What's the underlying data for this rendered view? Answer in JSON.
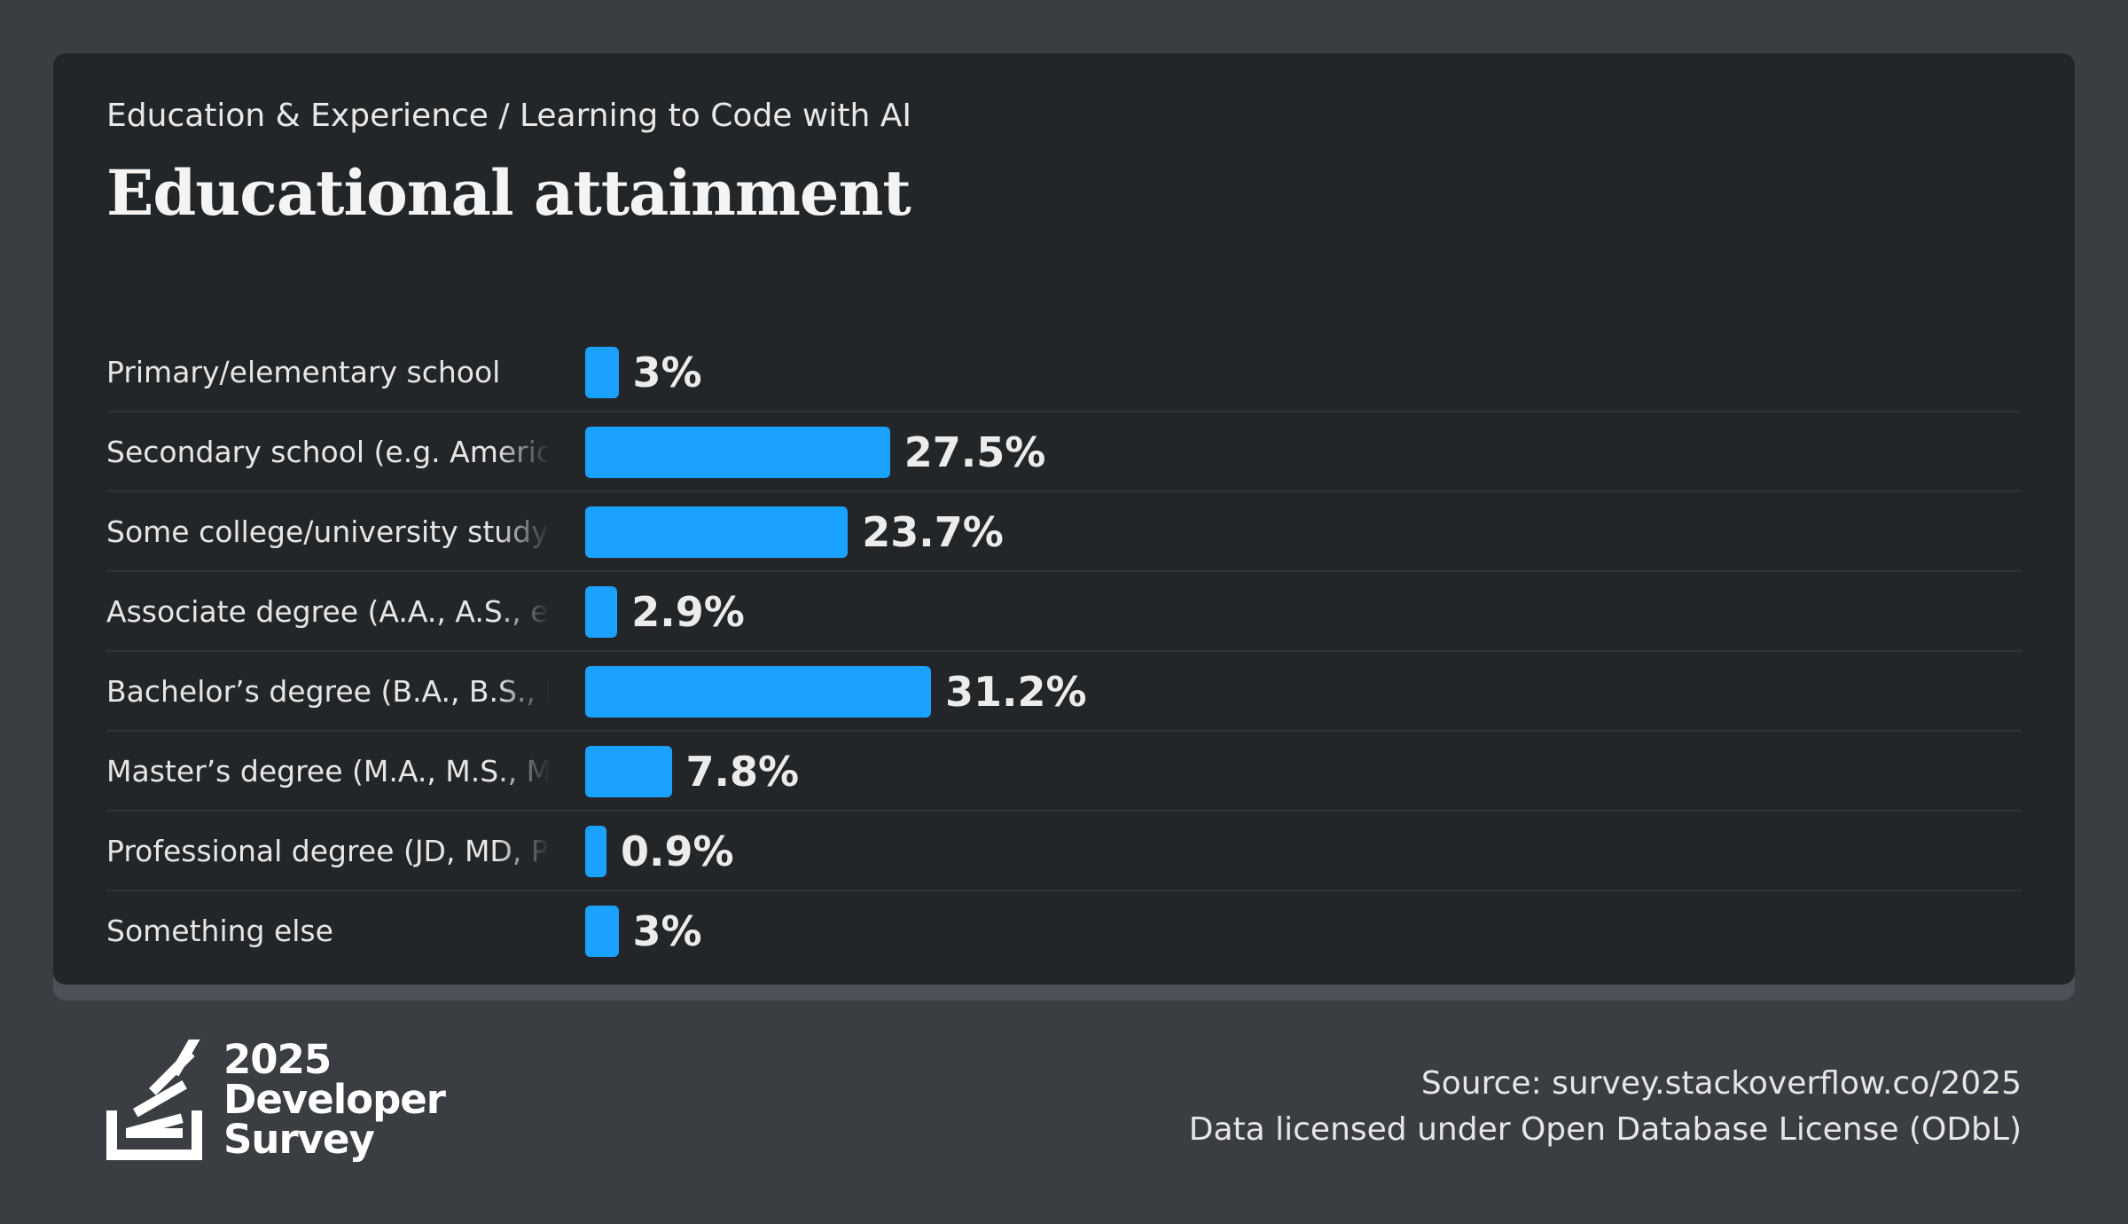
{
  "header": {
    "breadcrumb": "Education & Experience / Learning to Code with AI",
    "title": "Educational attainment"
  },
  "chart_data": {
    "type": "bar",
    "orientation": "horizontal",
    "categories": [
      "Primary/elementary school",
      "Secondary school (e.g. American high school, German Realschule or Gymnasium, etc.)",
      "Some college/university study without earning a degree",
      "Associate degree (A.A., A.S., etc.)",
      "Bachelor’s degree (B.A., B.S., B.Eng., etc.)",
      "Master’s degree (M.A., M.S., M.Eng., MBA, etc.)",
      "Professional degree (JD, MD, Ph.D, Ed.D, etc.)",
      "Something else"
    ],
    "values": [
      3,
      27.5,
      23.7,
      2.9,
      31.2,
      7.8,
      0.9,
      3
    ],
    "value_labels": [
      "3%",
      "27.5%",
      "23.7%",
      "2.9%",
      "31.2%",
      "7.8%",
      "0.9%",
      "3%"
    ],
    "unit": "%",
    "bar_color": "#1ba1ff",
    "grid": false,
    "legend": "none"
  },
  "footer": {
    "logo_lines": [
      "2025",
      "Developer",
      "Survey"
    ],
    "source": "Source: survey.stackoverflow.co/2025",
    "license": "Data licensed under Open Database License (ODbL)"
  },
  "colors": {
    "background": "#3a3e43",
    "card": "#232629",
    "accent": "#1ba1ff"
  }
}
